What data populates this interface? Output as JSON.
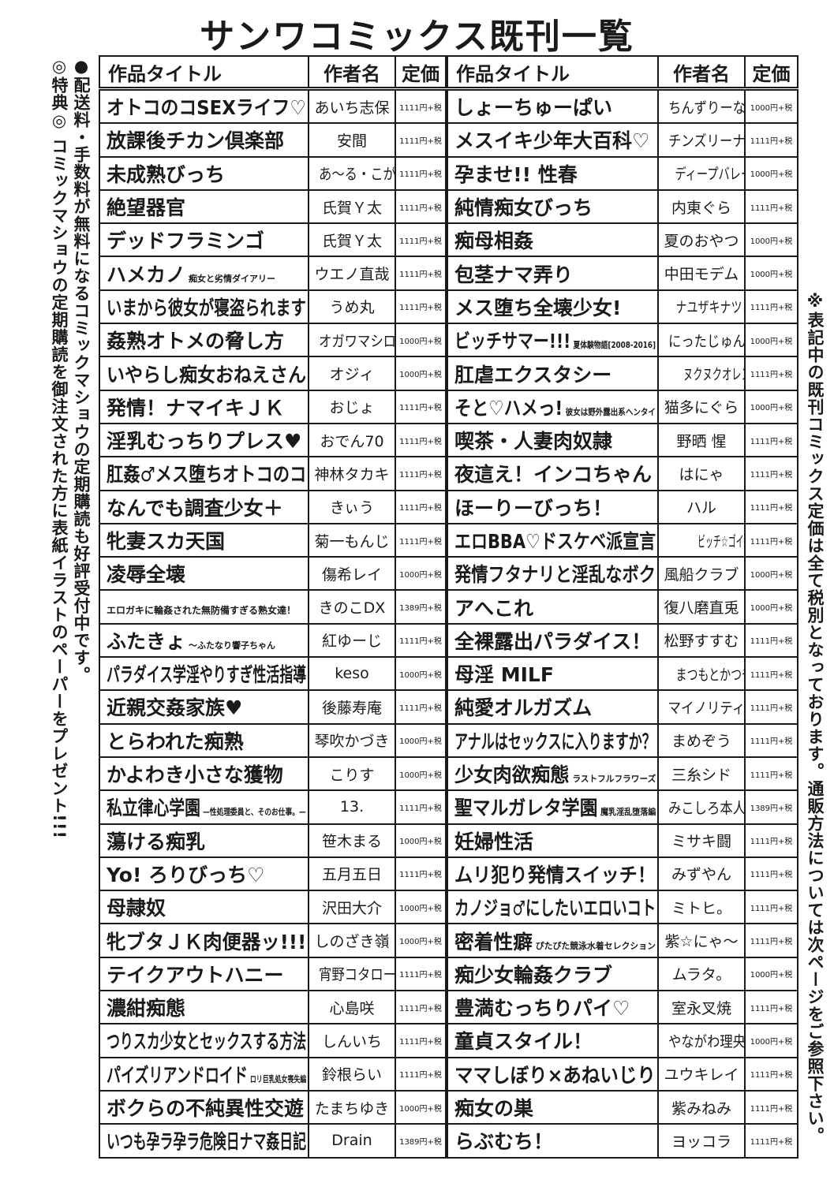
{
  "title": "サンワコミックス既刊一覧",
  "headers": {
    "title": "作品タイトル",
    "author": "作者名",
    "price": "定価"
  },
  "side_left": {
    "notice1": "●配送料・手数料が無料になるコミックマショウの定期購読も好評受付中です。",
    "notice2": "◎特典◎ コミックマショウの定期購読を御注文された方に表紙イラストのペーパーをプレゼント!!!"
  },
  "side_right": {
    "notice": "※表記中の既刊コミックス定価は全て税別となっております。通販方法については次ページをご参照下さい。"
  },
  "left_rows": [
    {
      "title": "オトコのコSEXライフ♡",
      "author": "あいち志保",
      "price": "1111円+税"
    },
    {
      "title": "放課後チカン倶楽部",
      "author": "安間",
      "price": "1111円+税"
    },
    {
      "title": "未成熟びっち",
      "author": "あ〜る・こが",
      "price": "1111円+税"
    },
    {
      "title": "絶望器官",
      "author": "氏賀Ｙ太",
      "price": "1111円+税"
    },
    {
      "title": "デッドフラミンゴ",
      "author": "氏賀Ｙ太",
      "price": "1111円+税"
    },
    {
      "title": "ハメカノ",
      "subtitle": "痴女と劣情ダイアリー",
      "author": "ウエノ直哉",
      "price": "1111円+税"
    },
    {
      "title": "いまから彼女が寝盗られます",
      "author": "うめ丸",
      "price": "1111円+税"
    },
    {
      "title": "姦熟オトメの脅し方",
      "author": "オガワマシロ",
      "price": "1000円+税"
    },
    {
      "title": "いやらし痴女おねえさん",
      "author": "オジィ",
      "price": "1000円+税"
    },
    {
      "title": "発情！ナマイキＪＫ",
      "author": "おじょ",
      "price": "1111円+税"
    },
    {
      "title": "淫乳むっちりプレス♥",
      "author": "おでん70",
      "price": "1111円+税"
    },
    {
      "title": "肛姦♂メス堕ちオトコのコ",
      "author": "神林タカキ",
      "price": "1111円+税"
    },
    {
      "title": "なんでも調査少女＋",
      "author": "きぃう",
      "price": "1111円+税"
    },
    {
      "title": "牝妻スカ天国",
      "author": "菊一もんじ",
      "price": "1111円+税"
    },
    {
      "title": "凌辱全壊",
      "author": "傷希レイ",
      "price": "1000円+税"
    },
    {
      "title": "エロガキに輪姦された無防備すぎる熟女達！",
      "author": "きのこDX",
      "price": "1389円+税",
      "two_line": true
    },
    {
      "title": "ふたきょ",
      "subtitle": "〜ふたなり響子ちゃん",
      "author": "紅ゆーじ",
      "price": "1111円+税"
    },
    {
      "title": "パラダイス学淫やりすぎ性活指導",
      "author": "keso",
      "price": "1000円+税"
    },
    {
      "title": "近親交姦家族♥",
      "author": "後藤寿庵",
      "price": "1111円+税"
    },
    {
      "title": "とらわれた痴熟",
      "author": "琴吹かづき",
      "price": "1000円+税"
    },
    {
      "title": "かよわき小さな獲物",
      "author": "こりす",
      "price": "1000円+税"
    },
    {
      "title": "私立律心学園",
      "subtitle": "—性処理委員と、そのお仕事。—",
      "author": "13.",
      "price": "1111円+税"
    },
    {
      "title": "蕩ける痴乳",
      "author": "笹木まる",
      "price": "1000円+税"
    },
    {
      "title": "Yo! ろりびっち♡",
      "author": "五月五日",
      "price": "1111円+税"
    },
    {
      "title": "母隷奴",
      "author": "沢田大介",
      "price": "1000円+税"
    },
    {
      "title": "牝ブタＪＫ肉便器ッ!!!",
      "author": "しのざき嶺",
      "price": "1000円+税"
    },
    {
      "title": "テイクアウトハニー",
      "author": "宵野コタロー",
      "price": "1111円+税"
    },
    {
      "title": "濃紺痴態",
      "author": "心島咲",
      "price": "1111円+税"
    },
    {
      "title": "つりスカ少女とセックスする方法",
      "author": "しんいち",
      "price": "1111円+税"
    },
    {
      "title": "パイズリアンドロイド",
      "subtitle": "ロリ巨乳処女喪失編",
      "author": "鈴根らい",
      "price": "1111円+税"
    },
    {
      "title": "ボクらの不純異性交遊",
      "author": "たまちゆき",
      "price": "1000円+税"
    },
    {
      "title": "いつも孕ラ孕ラ危険日ナマ姦日記",
      "author": "Drain",
      "price": "1389円+税"
    }
  ],
  "right_rows": [
    {
      "title": "しょーちゅーぱい",
      "author": "ちんずりーな",
      "price": "1000円+税"
    },
    {
      "title": "メスイキ少年大百科♡",
      "author": "チンズリーナ",
      "price": "1111円+税"
    },
    {
      "title": "孕ませ!! 性春",
      "author": "ディープバレー",
      "price": "1000円+税"
    },
    {
      "title": "純情痴女びっち",
      "author": "内東ぐら",
      "price": "1111円+税"
    },
    {
      "title": "痴母相姦",
      "author": "夏のおやつ",
      "price": "1000円+税"
    },
    {
      "title": "包茎ナマ弄り",
      "author": "中田モデム",
      "price": "1000円+税"
    },
    {
      "title": "メス堕ち全壊少女!",
      "author": "ナユザキナツミ",
      "price": "1111円+税"
    },
    {
      "title": "ビッチサマー!!!",
      "subtitle": "夏体験物語[2008-2016]",
      "author": "にったじゅん",
      "price": "1000円+税"
    },
    {
      "title": "肛虐エクスタシー",
      "author": "ヌクヌクオレンジ",
      "price": "1111円+税"
    },
    {
      "title": "そと♡ハメっ!",
      "subtitle": "彼女は野外露出系ヘンタイ",
      "author": "猫多にぐら",
      "price": "1000円+税"
    },
    {
      "title": "喫茶・人妻肉奴隷",
      "author": "野晒 惺",
      "price": "1111円+税"
    },
    {
      "title": "夜這え！インコちゃん",
      "author": "はにゃ",
      "price": "1111円+税"
    },
    {
      "title": "ほーりーびっち！",
      "author": "ハル",
      "price": "1111円+税"
    },
    {
      "title": "エロBBA♡ドスケベ派宣言",
      "author": "ビッチ☆ゴイゴスター",
      "price": "1111円+税"
    },
    {
      "title": "発情フタナリと淫乱なボク",
      "author": "風船クラブ",
      "price": "1000円+税"
    },
    {
      "title": "アへこれ",
      "author": "復八磨直兎",
      "price": "1000円+税"
    },
    {
      "title": "全裸露出パラダイス！",
      "author": "松野すすむ",
      "price": "1111円+税"
    },
    {
      "title": "母淫 MILF",
      "author": "まつもとかつや",
      "price": "1111円+税"
    },
    {
      "title": "純愛オルガズム",
      "author": "マイノリティ",
      "price": "1111円+税"
    },
    {
      "title": "アナルはセックスに入りますか？",
      "author": "まめぞう",
      "price": "1111円+税"
    },
    {
      "title": "少女肉欲痴態",
      "subtitle": "ラストフルフラワーズ",
      "author": "三糸シド",
      "price": "1111円+税"
    },
    {
      "title": "聖マルガレタ学園",
      "subtitle": "魔乳淫乱堕落編",
      "author": "みこしろ本人",
      "price": "1389円+税"
    },
    {
      "title": "妊婦性活",
      "author": "ミサキ闘",
      "price": "1111円+税"
    },
    {
      "title": "ムリ犯り発情スイッチ！",
      "author": "みずやん",
      "price": "1111円+税"
    },
    {
      "title": "カノジョ♂にしたいエロいコト",
      "author": "ミトヒ。",
      "price": "1111円+税"
    },
    {
      "title": "密着性癖",
      "subtitle": "ぴたぴた競泳水着セレクション",
      "author": "紫☆にゃ〜",
      "price": "1111円+税"
    },
    {
      "title": "痴少女輪姦クラブ",
      "author": "ムラタ。",
      "price": "1000円+税"
    },
    {
      "title": "豊満むっちりパイ♡",
      "author": "室永叉焼",
      "price": "1111円+税"
    },
    {
      "title": "童貞スタイル！",
      "author": "やながわ理央",
      "price": "1000円+税"
    },
    {
      "title": "ママしぼり×あねいじり",
      "author": "ユウキレイ",
      "price": "1111円+税"
    },
    {
      "title": "痴女の巣",
      "author": "紫みねみ",
      "price": "1111円+税"
    },
    {
      "title": "らぶむち！",
      "author": "ヨッコラ",
      "price": "1111円+税"
    }
  ]
}
